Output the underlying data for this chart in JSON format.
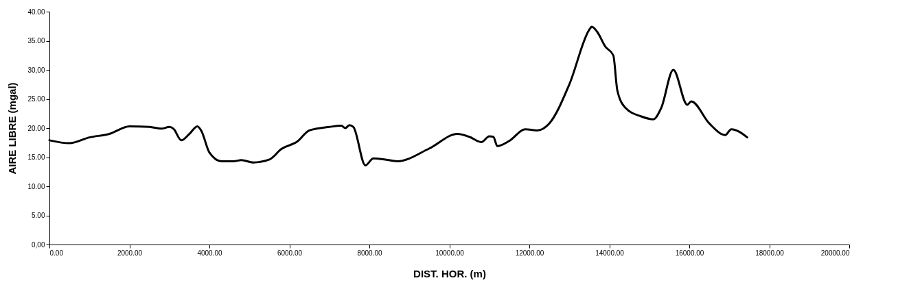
{
  "chart_data": {
    "type": "line",
    "xlabel": "DIST. HOR. (m)",
    "ylabel": "AIRE LIBRE (mgal)",
    "x": [
      0,
      500,
      1000,
      1500,
      2000,
      2500,
      2800,
      3000,
      3100,
      3300,
      3500,
      3700,
      3800,
      4000,
      4300,
      4600,
      4800,
      5100,
      5500,
      5800,
      6200,
      6500,
      7000,
      7300,
      7400,
      7500,
      7600,
      7900,
      8100,
      8400,
      8700,
      9500,
      10200,
      10500,
      10800,
      11000,
      11100,
      11200,
      11500,
      11900,
      12200,
      12500,
      13000,
      13500,
      13560,
      13700,
      13900,
      14100,
      14200,
      14400,
      14800,
      15100,
      15300,
      15600,
      15950,
      16050,
      16500,
      16900,
      17050,
      17450
    ],
    "series": [
      {
        "color": "#000000",
        "values": [
          17.9,
          17.4,
          18.4,
          19.0,
          20.3,
          20.2,
          19.9,
          20.2,
          19.9,
          17.9,
          19.0,
          20.3,
          19.5,
          15.8,
          14.3,
          14.3,
          14.5,
          14.1,
          14.6,
          16.4,
          17.7,
          19.6,
          20.2,
          20.4,
          20.0,
          20.5,
          20.2,
          13.6,
          14.8,
          14.6,
          14.3,
          16.5,
          19.0,
          18.5,
          17.6,
          18.6,
          18.5,
          16.9,
          17.8,
          19.8,
          19.6,
          20.8,
          27.5,
          36.9,
          37.4,
          36.5,
          34.0,
          32.5,
          26.5,
          23.5,
          22.0,
          21.5,
          23.5,
          30.0,
          24.0,
          24.6,
          20.8,
          18.8,
          19.8,
          18.4
        ]
      }
    ],
    "xlim": [
      0,
      20000
    ],
    "xticks": [
      {
        "value": 0,
        "label": "0.00"
      },
      {
        "value": 2000,
        "label": "2000.00"
      },
      {
        "value": 4000,
        "label": "4000.00"
      },
      {
        "value": 6000,
        "label": "6000.00"
      },
      {
        "value": 8000,
        "label": "8000.00"
      },
      {
        "value": 10000,
        "label": "10000.00"
      },
      {
        "value": 12000,
        "label": "12000.00"
      },
      {
        "value": 14000,
        "label": "14000.00"
      },
      {
        "value": 16000,
        "label": "16000.00"
      },
      {
        "value": 18000,
        "label": "18000.00"
      },
      {
        "value": 20000,
        "label": "20000.00"
      }
    ],
    "ylim": [
      0,
      40
    ],
    "yticks": [
      {
        "value": 0,
        "label": "0,00"
      },
      {
        "value": 5,
        "label": "5.00"
      },
      {
        "value": 10,
        "label": "10.00"
      },
      {
        "value": 15,
        "label": "15.00"
      },
      {
        "value": 20,
        "label": "20.00"
      },
      {
        "value": 25,
        "label": "25.00"
      },
      {
        "value": 30,
        "label": "30,00"
      },
      {
        "value": 35,
        "label": "35.00"
      },
      {
        "value": 40,
        "label": "40.00"
      }
    ],
    "grid": false,
    "marker": "none",
    "line_style": "solid"
  }
}
